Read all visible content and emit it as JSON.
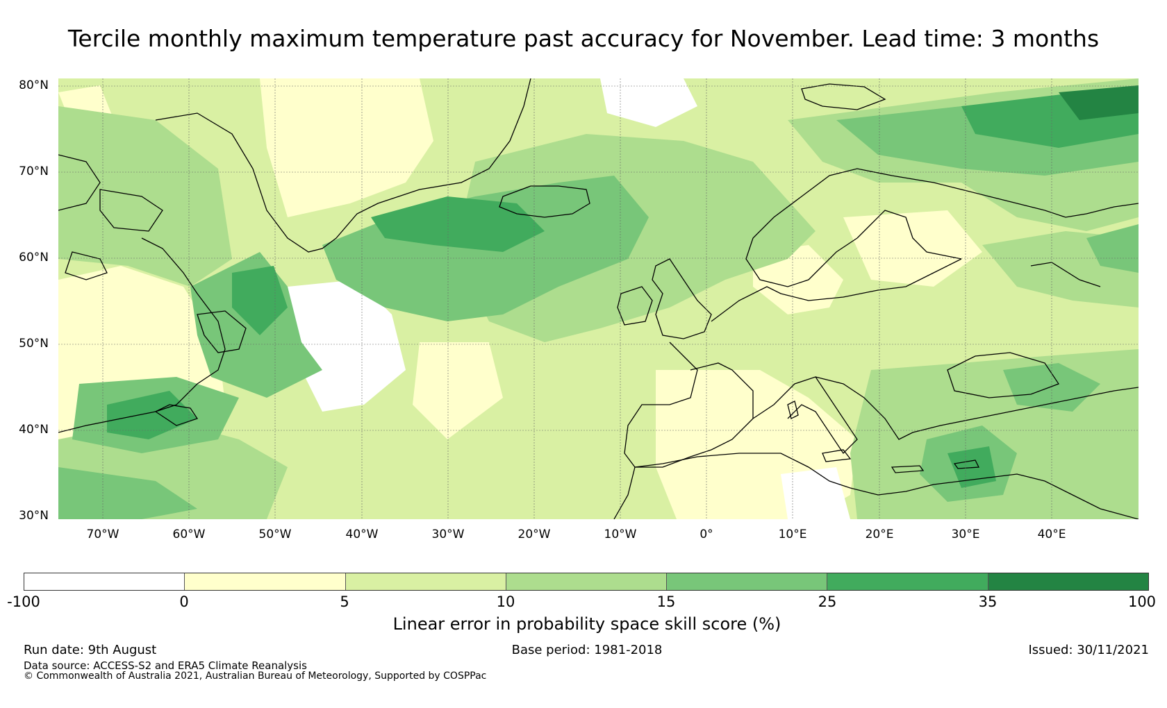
{
  "title": "Tercile monthly maximum temperature past accuracy for November. Lead time: 3 months",
  "map": {
    "lat_labels": [
      "80°N",
      "70°N",
      "60°N",
      "50°N",
      "40°N",
      "30°N"
    ],
    "lon_labels": [
      "70°W",
      "60°W",
      "50°W",
      "40°W",
      "30°W",
      "20°W",
      "10°W",
      "0°",
      "10°E",
      "20°E",
      "30°E",
      "40°E"
    ],
    "extent": {
      "lon_min": -75,
      "lon_max": 50,
      "lat_min": 30,
      "lat_max": 81
    },
    "gridlines": true
  },
  "colorbar": {
    "colors": [
      "#ffffff",
      "#ffffcc",
      "#d9f0a3",
      "#addd8e",
      "#78c679",
      "#41ab5d",
      "#238443"
    ],
    "ticks": [
      "-100",
      "0",
      "5",
      "10",
      "15",
      "25",
      "35",
      "100"
    ],
    "label": "Linear error in probability space skill score (%)"
  },
  "footer": {
    "run_date": "Run date: 9th August",
    "base_period": "Base period: 1981-2018",
    "issued": "Issued: 30/11/2021",
    "data_source": "Data source: ACCESS-S2 and ERA5 Climate Reanalysis",
    "copyright": "© Commonwealth of Australia 2021, Australian Bureau of Meteorology, Supported by COSPPac"
  }
}
